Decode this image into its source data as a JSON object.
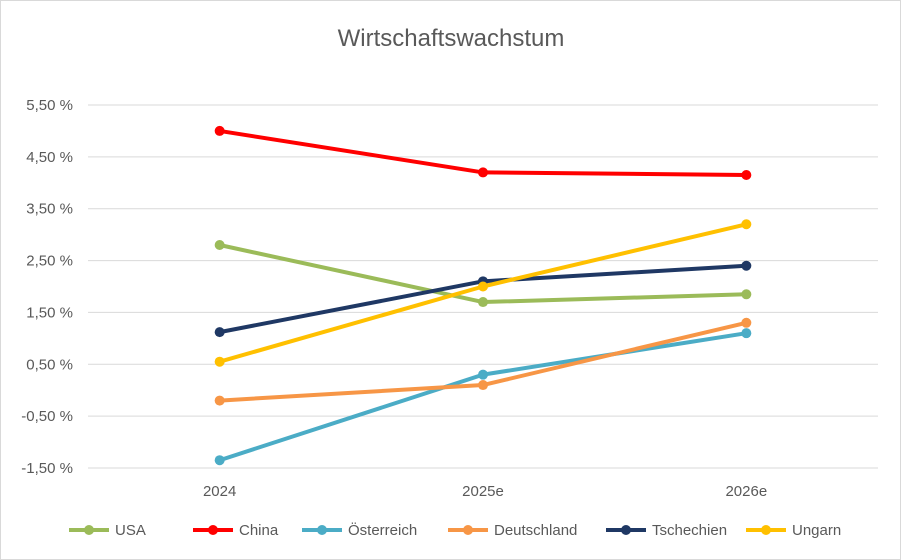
{
  "chart_data": {
    "type": "line",
    "title": "Wirtschaftswachstum",
    "xlabel": "",
    "ylabel": "",
    "categories": [
      "2024",
      "2025e",
      "2026e"
    ],
    "ylim": [
      -1.5,
      5.5
    ],
    "y_ticks": [
      5.5,
      4.5,
      3.5,
      2.5,
      1.5,
      0.5,
      -0.5,
      -1.5
    ],
    "y_tick_labels": [
      "5,50 %",
      "4,50 %",
      "3,50 %",
      "2,50 %",
      "1,50 %",
      "0,50 %",
      "-0,50 %",
      "-1,50 %"
    ],
    "grid": true,
    "legend_position": "bottom",
    "series": [
      {
        "name": "USA",
        "color": "#9bbb59",
        "values": [
          2.8,
          1.7,
          1.85
        ]
      },
      {
        "name": "China",
        "color": "#ff0000",
        "values": [
          5.0,
          4.2,
          4.15
        ]
      },
      {
        "name": "Österreich",
        "color": "#4bacc6",
        "values": [
          -1.35,
          0.3,
          1.1
        ]
      },
      {
        "name": "Deutschland",
        "color": "#f79646",
        "values": [
          -0.2,
          0.1,
          1.3
        ]
      },
      {
        "name": "Tschechien",
        "color": "#1f3864",
        "values": [
          1.12,
          2.1,
          2.4
        ]
      },
      {
        "name": "Ungarn",
        "color": "#ffc000",
        "values": [
          0.55,
          2.0,
          3.2
        ]
      }
    ]
  }
}
